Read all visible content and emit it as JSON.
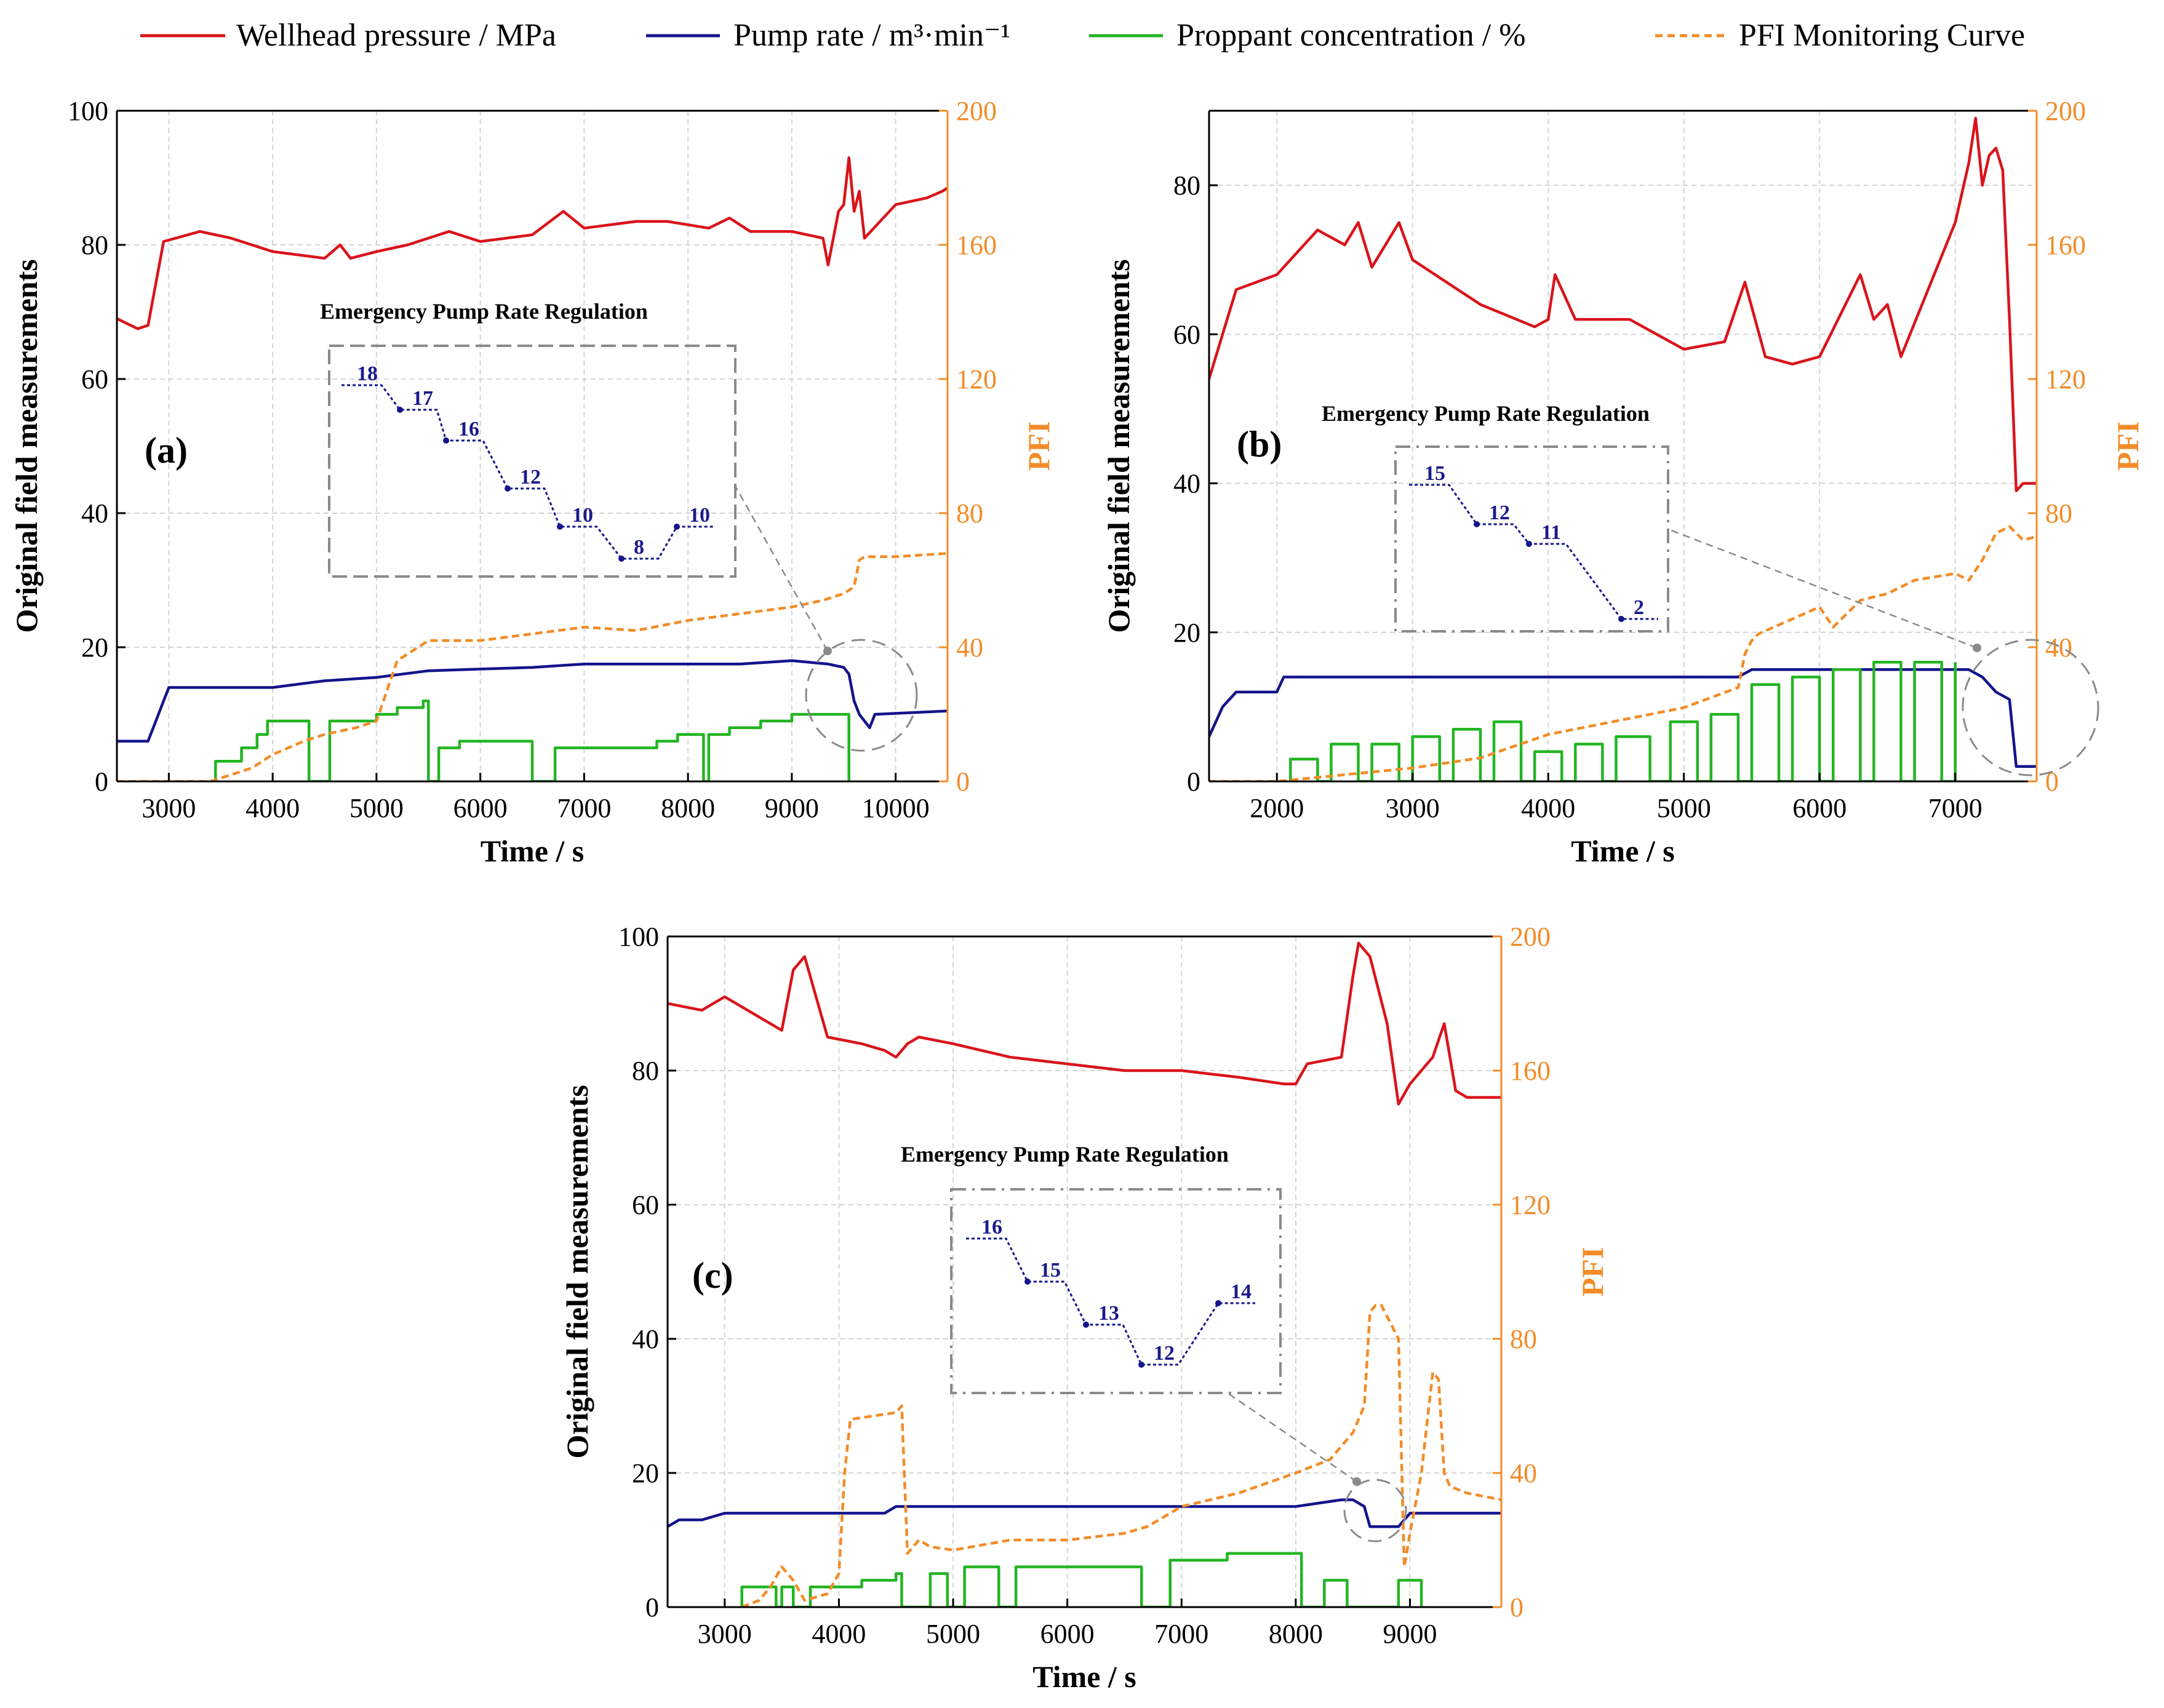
{
  "legend": [
    {
      "label": "Wellhead pressure / MPa",
      "color": "#d9141b",
      "dashed": false
    },
    {
      "label": "Pump rate / m³·min⁻¹",
      "color": "#14148c",
      "dashed": false
    },
    {
      "label": "Proppant concentration / %",
      "color": "#22b522",
      "dashed": false
    },
    {
      "label": "PFI Monitoring Curve",
      "color": "#f28c28",
      "dashed": true
    }
  ],
  "colors": {
    "pressure": "#d9141b",
    "pump": "#14148c",
    "proppant": "#22b522",
    "pfi": "#f28c28"
  },
  "chart_data": [
    {
      "type": "line",
      "panel_label": "(a)",
      "xlabel": "Time / s",
      "ylabel": "Original field measurements",
      "y2label": "PFI",
      "xlim": [
        2500,
        10500
      ],
      "ylim": [
        0,
        100
      ],
      "y2lim": [
        0,
        200
      ],
      "x_ticks": [
        3000,
        4000,
        5000,
        6000,
        7000,
        8000,
        9000,
        10000
      ],
      "y_ticks": [
        0,
        20,
        40,
        60,
        80,
        100
      ],
      "y2_ticks": [
        0,
        40,
        80,
        120,
        160,
        200
      ],
      "grid": true,
      "inset_title": "Emergency Pump Rate Regulation",
      "inset_steps": [
        "18",
        "17",
        "16",
        "12",
        "10",
        "8",
        "10"
      ],
      "series": [
        {
          "name": "Wellhead pressure / MPa",
          "axis": "left",
          "x": [
            2500,
            2700,
            2800,
            2950,
            3300,
            3600,
            4000,
            4500,
            4650,
            4750,
            5000,
            5300,
            5700,
            6000,
            6500,
            6800,
            7000,
            7500,
            7800,
            8200,
            8400,
            8600,
            9000,
            9300,
            9350,
            9450,
            9500,
            9550,
            9600,
            9650,
            9700,
            10000,
            10300,
            10450,
            10500
          ],
          "y": [
            69,
            67.5,
            68,
            80.5,
            82,
            81,
            79,
            78,
            80,
            78,
            79,
            80,
            82,
            80.5,
            81.5,
            85,
            82.5,
            83.5,
            83.5,
            82.5,
            84,
            82,
            82,
            81,
            77,
            85,
            86,
            93,
            85,
            88,
            81,
            86,
            87,
            88,
            88.5
          ]
        },
        {
          "name": "Pump rate / m³·min⁻¹",
          "axis": "left",
          "x": [
            2500,
            2800,
            2850,
            2950,
            3000,
            4000,
            4500,
            5000,
            5500,
            6500,
            7000,
            8000,
            8500,
            9000,
            9350,
            9500,
            9550,
            9600,
            9650,
            9750,
            9800,
            10500
          ],
          "y": [
            6,
            6,
            8,
            12,
            14,
            14,
            15,
            15.5,
            16.5,
            17,
            17.5,
            17.5,
            17.5,
            18,
            17.5,
            17,
            16,
            12,
            10,
            8,
            10,
            10.5
          ]
        },
        {
          "name": "Proppant concentration / %",
          "axis": "left",
          "x": [
            3450,
            3450,
            3700,
            3700,
            3850,
            3850,
            3950,
            3950,
            4100,
            4100,
            4350,
            4350,
            4550,
            4550,
            4600,
            4600,
            5000,
            5000,
            5200,
            5200,
            5450,
            5450,
            5500,
            5500,
            5600,
            5600,
            5800,
            5800,
            6500,
            6500,
            6700,
            6700,
            6720,
            6720,
            7700,
            7700,
            7900,
            7900,
            8150,
            8150,
            8200,
            8200,
            8400,
            8400,
            8700,
            8700,
            9000,
            9000,
            9200,
            9200,
            9550,
            9550
          ],
          "y": [
            0,
            3,
            3,
            5,
            5,
            7,
            7,
            9,
            9,
            9,
            9,
            0,
            0,
            9,
            9,
            9,
            9,
            10,
            10,
            11,
            11,
            12,
            12,
            0,
            0,
            5,
            5,
            6,
            6,
            0,
            0,
            0,
            0,
            5,
            5,
            6,
            6,
            7,
            7,
            0,
            0,
            7,
            7,
            8,
            8,
            9,
            9,
            10,
            10,
            10,
            10,
            0
          ]
        },
        {
          "name": "PFI Monitoring Curve",
          "axis": "right",
          "x": [
            2500,
            3400,
            3600,
            3800,
            4000,
            4300,
            4500,
            4800,
            5000,
            5200,
            5500,
            6000,
            6500,
            7000,
            7500,
            8000,
            8500,
            9000,
            9300,
            9500,
            9600,
            9650,
            9700,
            10000,
            10500
          ],
          "y": [
            0,
            0,
            2,
            4,
            8,
            12,
            14,
            16,
            18,
            36,
            42,
            42,
            44,
            46,
            45,
            48,
            50,
            52,
            54,
            56,
            58,
            66,
            67,
            67,
            68
          ]
        }
      ]
    },
    {
      "type": "line",
      "panel_label": "(b)",
      "xlabel": "Time / s",
      "ylabel": "Original field measurements",
      "y2label": "PFI",
      "xlim": [
        1500,
        7600
      ],
      "ylim": [
        0,
        90
      ],
      "y2lim": [
        0,
        200
      ],
      "x_ticks": [
        2000,
        3000,
        4000,
        5000,
        6000,
        7000
      ],
      "y_ticks": [
        0,
        20,
        40,
        60,
        80
      ],
      "y2_ticks": [
        0,
        40,
        80,
        120,
        160,
        200
      ],
      "grid": true,
      "inset_title": "Emergency Pump Rate Regulation",
      "inset_steps": [
        "15",
        "12",
        "11",
        "2"
      ],
      "series": [
        {
          "name": "Wellhead pressure / MPa",
          "axis": "left",
          "x": [
            1500,
            1600,
            1700,
            2000,
            2300,
            2500,
            2600,
            2700,
            2900,
            3000,
            3500,
            3900,
            4000,
            4050,
            4200,
            4600,
            5000,
            5300,
            5450,
            5600,
            5800,
            6000,
            6300,
            6400,
            6500,
            6600,
            7000,
            7100,
            7150,
            7200,
            7250,
            7300,
            7350,
            7400,
            7450,
            7500,
            7600
          ],
          "y": [
            54,
            60,
            66,
            68,
            74,
            72,
            75,
            69,
            75,
            70,
            64,
            61,
            62,
            68,
            62,
            62,
            58,
            59,
            67,
            57,
            56,
            57,
            68,
            62,
            64,
            57,
            75,
            83,
            89,
            80,
            84,
            85,
            82,
            62,
            39,
            40,
            40
          ]
        },
        {
          "name": "Pump rate / m³·min⁻¹",
          "axis": "left",
          "x": [
            1500,
            1600,
            1700,
            2000,
            2050,
            2100,
            5400,
            5450,
            5500,
            7000,
            7100,
            7200,
            7300,
            7400,
            7450,
            7600
          ],
          "y": [
            6,
            10,
            12,
            12,
            14,
            14,
            14,
            14.5,
            15,
            15,
            15,
            14,
            12,
            11,
            2,
            2
          ]
        },
        {
          "name": "Proppant concentration / %",
          "axis": "left",
          "x": [
            2100,
            2100,
            2300,
            2300,
            2400,
            2400,
            2600,
            2600,
            2700,
            2700,
            2900,
            2900,
            3000,
            3000,
            3200,
            3200,
            3300,
            3300,
            3500,
            3500,
            3600,
            3600,
            3800,
            3800,
            3900,
            3900,
            4100,
            4100,
            4200,
            4200,
            4400,
            4400,
            4500,
            4500,
            4750,
            4750,
            4900,
            4900,
            5100,
            5100,
            5200,
            5200,
            5400,
            5400,
            5500,
            5500,
            5700,
            5700,
            5800,
            5800,
            6000,
            6000,
            6100,
            6100,
            6300,
            6300,
            6400,
            6400,
            6600,
            6600,
            6700,
            6700,
            6900,
            6900,
            7000,
            7000
          ],
          "y": [
            0,
            3,
            3,
            0,
            0,
            5,
            5,
            0,
            0,
            5,
            5,
            0,
            0,
            6,
            6,
            0,
            0,
            7,
            7,
            0,
            0,
            8,
            8,
            0,
            0,
            4,
            4,
            0,
            0,
            5,
            5,
            0,
            0,
            6,
            6,
            0,
            0,
            8,
            8,
            0,
            0,
            9,
            9,
            0,
            0,
            13,
            13,
            0,
            0,
            14,
            14,
            0,
            0,
            15,
            15,
            0,
            0,
            16,
            16,
            0,
            0,
            16,
            16,
            0,
            0,
            16
          ]
        },
        {
          "name": "PFI Monitoring Curve",
          "axis": "right",
          "x": [
            1500,
            2000,
            2500,
            3000,
            3500,
            4000,
            4500,
            5000,
            5400,
            5450,
            5500,
            5550,
            6000,
            6100,
            6300,
            6500,
            6600,
            6700,
            7000,
            7100,
            7200,
            7300,
            7400,
            7500,
            7600
          ],
          "y": [
            0,
            0,
            2,
            4,
            7,
            14,
            18,
            22,
            28,
            38,
            42,
            44,
            52,
            46,
            54,
            56,
            58,
            60,
            62,
            60,
            66,
            74,
            76,
            72,
            73
          ]
        }
      ]
    },
    {
      "type": "line",
      "panel_label": "(c)",
      "xlabel": "Time / s",
      "ylabel": "Original field measurements",
      "y2label": "PFI",
      "xlim": [
        2500,
        9800
      ],
      "ylim": [
        0,
        100
      ],
      "y2lim": [
        0,
        200
      ],
      "x_ticks": [
        3000,
        4000,
        5000,
        6000,
        7000,
        8000,
        9000
      ],
      "y_ticks": [
        0,
        20,
        40,
        60,
        80,
        100
      ],
      "y2_ticks": [
        0,
        40,
        80,
        120,
        160,
        200
      ],
      "grid": true,
      "inset_title": "Emergency Pump Rate Regulation",
      "inset_steps": [
        "16",
        "15",
        "13",
        "12",
        "14"
      ],
      "series": [
        {
          "name": "Wellhead pressure / MPa",
          "axis": "left",
          "x": [
            2500,
            2800,
            3000,
            3300,
            3500,
            3600,
            3700,
            3900,
            4200,
            4400,
            4500,
            4600,
            4700,
            5000,
            5500,
            6000,
            6500,
            7000,
            7500,
            7900,
            8000,
            8100,
            8400,
            8500,
            8550,
            8650,
            8800,
            8900,
            9000,
            9200,
            9300,
            9400,
            9500,
            9800
          ],
          "y": [
            90,
            89,
            91,
            88,
            86,
            95,
            97,
            85,
            84,
            83,
            82,
            84,
            85,
            84,
            82,
            81,
            80,
            80,
            79,
            78,
            78,
            81,
            82,
            94,
            99,
            97,
            87,
            75,
            78,
            82,
            87,
            77,
            76,
            76
          ]
        },
        {
          "name": "Pump rate / m³·min⁻¹",
          "axis": "left",
          "x": [
            2500,
            2600,
            2800,
            2900,
            3000,
            4400,
            4500,
            5000,
            8000,
            8400,
            8500,
            8600,
            8650,
            8700,
            8900,
            8950,
            9000,
            9800
          ],
          "y": [
            12,
            13,
            13,
            13.5,
            14,
            14,
            15,
            15,
            15,
            16,
            16,
            15,
            12,
            12,
            12,
            13,
            14,
            14
          ]
        },
        {
          "name": "Proppant concentration / %",
          "axis": "left",
          "x": [
            3150,
            3150,
            3450,
            3450,
            3500,
            3500,
            3600,
            3600,
            3750,
            3750,
            4200,
            4200,
            4500,
            4500,
            4550,
            4550,
            4800,
            4800,
            4950,
            4950,
            5100,
            5100,
            5400,
            5400,
            5550,
            5550,
            6650,
            6650,
            6900,
            6900,
            7400,
            7400,
            8050,
            8050,
            8250,
            8250,
            8450,
            8450,
            8900,
            8900,
            9100,
            9100
          ],
          "y": [
            0,
            3,
            3,
            0,
            0,
            3,
            3,
            0,
            0,
            3,
            3,
            4,
            4,
            5,
            5,
            0,
            0,
            5,
            5,
            0,
            0,
            6,
            6,
            0,
            0,
            6,
            6,
            0,
            0,
            7,
            7,
            8,
            8,
            0,
            0,
            4,
            4,
            0,
            0,
            4,
            4,
            0
          ]
        },
        {
          "name": "PFI Monitoring Curve",
          "axis": "right",
          "x": [
            3150,
            3300,
            3400,
            3500,
            3600,
            3700,
            3900,
            4000,
            4050,
            4100,
            4500,
            4550,
            4600,
            4700,
            4800,
            5000,
            5500,
            6000,
            6500,
            6700,
            7000,
            7500,
            8000,
            8300,
            8500,
            8600,
            8650,
            8700,
            8750,
            8900,
            8950,
            9000,
            9100,
            9200,
            9250,
            9300,
            9350,
            9500,
            9800
          ],
          "y": [
            0,
            2,
            6,
            12,
            8,
            2,
            4,
            10,
            40,
            56,
            58,
            60,
            16,
            20,
            18,
            17,
            20,
            20,
            22,
            24,
            30,
            34,
            40,
            44,
            52,
            60,
            88,
            90,
            90,
            80,
            12,
            22,
            40,
            70,
            68,
            40,
            36,
            34,
            32
          ]
        }
      ]
    }
  ]
}
